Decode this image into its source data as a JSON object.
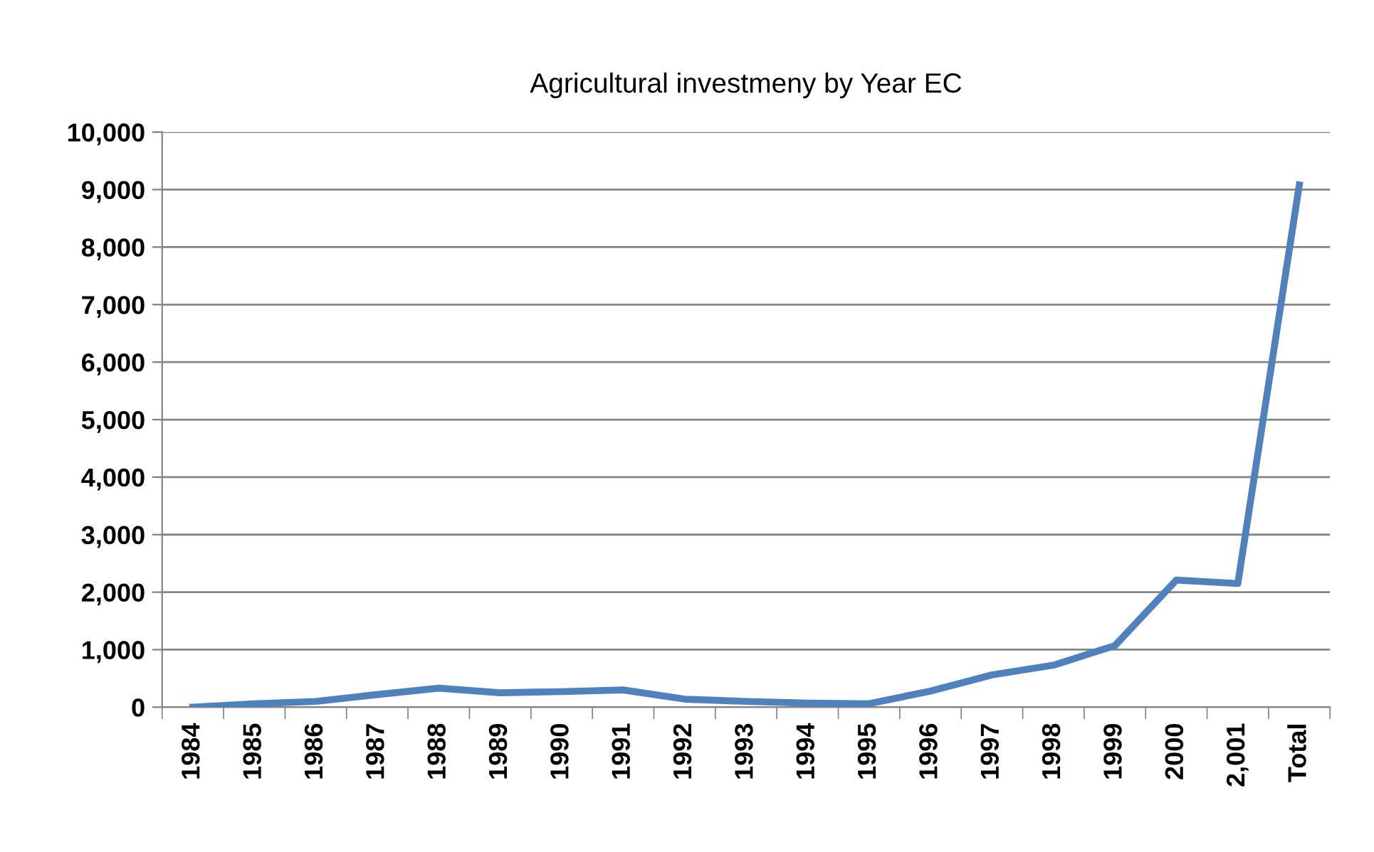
{
  "chart_data": {
    "type": "line",
    "title": "Agricultural investmeny by Year EC",
    "categories": [
      "1984",
      "1985",
      "1986",
      "1987",
      "1988",
      "1989",
      "1990",
      "1991",
      "1992",
      "1993",
      "1994",
      "1995",
      "1996",
      "1997",
      "1998",
      "1999",
      "2000",
      "2,001",
      "Total"
    ],
    "series": [
      {
        "color": "#4f81bd",
        "values": [
          0,
          60,
          100,
          220,
          330,
          250,
          270,
          300,
          140,
          100,
          70,
          60,
          280,
          560,
          730,
          1070,
          2210,
          2150,
          9080
        ]
      }
    ],
    "ylim": [
      0,
      10000
    ],
    "yticks": [
      {
        "value": 0,
        "label": "0"
      },
      {
        "value": 1000,
        "label": "1,000"
      },
      {
        "value": 2000,
        "label": "2,000"
      },
      {
        "value": 3000,
        "label": "3,000"
      },
      {
        "value": 4000,
        "label": "4,000"
      },
      {
        "value": 5000,
        "label": "5,000"
      },
      {
        "value": 6000,
        "label": "6,000"
      },
      {
        "value": 7000,
        "label": "7,000"
      },
      {
        "value": 8000,
        "label": "8,000"
      },
      {
        "value": 9000,
        "label": "9,000"
      },
      {
        "value": 10000,
        "label": "10,000"
      }
    ],
    "grid": "y",
    "marker": "none",
    "line_style": "solid"
  }
}
